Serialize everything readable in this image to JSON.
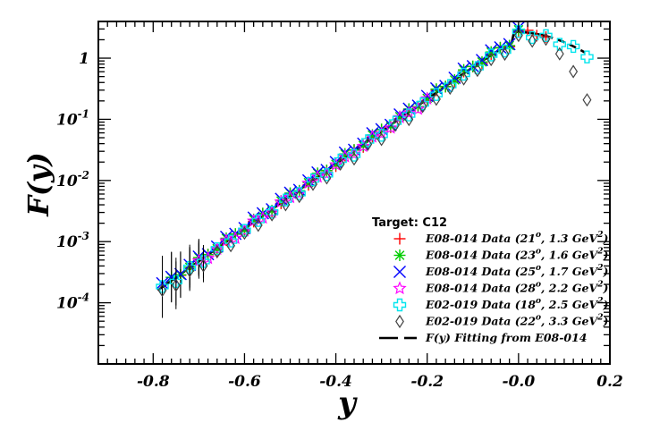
{
  "chart_data": {
    "type": "scatter",
    "title": "",
    "xlabel": "y",
    "ylabel": "F(y)",
    "xlim": [
      -0.92,
      0.2
    ],
    "ylim_log10": [
      -5.0,
      0.6
    ],
    "yscale": "log",
    "grid": false,
    "legend_position": "bottom-right",
    "legend_title": "Target: C12",
    "x_ticks": [
      -0.8,
      -0.6,
      -0.4,
      -0.2,
      0.0,
      0.2
    ],
    "x_tick_labels": [
      "-0.8",
      "-0.6",
      "-0.4",
      "-0.2",
      "-0.0",
      "0.2"
    ],
    "y_ticks": [
      {
        "value": 1,
        "base": "1",
        "exp": ""
      },
      {
        "value": 0.1,
        "base": "10",
        "exp": "-1"
      },
      {
        "value": 0.01,
        "base": "10",
        "exp": "-2"
      },
      {
        "value": 0.001,
        "base": "10",
        "exp": "-3"
      },
      {
        "value": 0.0001,
        "base": "10",
        "exp": "-4"
      }
    ],
    "series": [
      {
        "name": "E08-014 Data (21°, 1.3 GeV²)",
        "label_main": "E08-014 Data (21",
        "label_angle": "o",
        "label_mid": ", 1.3 GeV",
        "label_pow": "2",
        "label_end": ")",
        "marker": "plus",
        "color": "#ff0000",
        "x_start": -0.74,
        "x_end": 0.06,
        "x_step": 0.02,
        "offset": 0.0
      },
      {
        "name": "E08-014 Data (23°, 1.6 GeV²)",
        "label_main": "E08-014 Data (23",
        "label_angle": "o",
        "label_mid": ", 1.6 GeV",
        "label_pow": "2",
        "label_end": ")",
        "marker": "star",
        "color": "#00cc00",
        "x_start": -0.76,
        "x_end": 0.0,
        "x_step": 0.02,
        "offset": 0.02
      },
      {
        "name": "E08-014 Data (25°, 1.7 GeV²)",
        "label_main": "E08-014 Data (25",
        "label_angle": "o",
        "label_mid": ", 1.7 GeV",
        "label_pow": "2",
        "label_end": ")",
        "marker": "x",
        "color": "#0000ff",
        "x_start": -0.78,
        "x_end": 0.0,
        "x_step": 0.02,
        "offset": 0.04
      },
      {
        "name": "E08-014 Data (28°, 2.2 GeV²)",
        "label_main": "E08-014 Data (28",
        "label_angle": "o",
        "label_mid": ", 2.2 GeV",
        "label_pow": "2",
        "label_end": ")",
        "marker": "open-star",
        "color": "#ff00ff",
        "x_start": -0.7,
        "x_end": -0.2,
        "x_step": 0.02,
        "offset": -0.02
      },
      {
        "name": "E02-019 Data (18°, 2.5 GeV²)",
        "label_main": "E02-019 Data (18",
        "label_angle": "o",
        "label_mid": ", 2.5 GeV",
        "label_pow": "2",
        "label_end": ")",
        "marker": "open-cross",
        "color": "#00e5ee",
        "x_start": -0.78,
        "x_end": 0.15,
        "x_step": 0.03,
        "offset": -0.03
      },
      {
        "name": "E02-019 Data (22°, 3.3 GeV²)",
        "label_main": "E02-019 Data (22",
        "label_angle": "o",
        "label_mid": ", 3.3 GeV",
        "label_pow": "2",
        "label_end": ")",
        "marker": "diamond",
        "color": "#444444",
        "x_start": -0.78,
        "x_end": 0.15,
        "x_step": 0.03,
        "offset": -0.09
      }
    ],
    "fit": {
      "name": "F(y) Fitting from E08-014",
      "color": "#000000",
      "style": "solid-dash",
      "log10_at_minus_0_8": -3.85,
      "slope": 5.3,
      "peak_x": -0.01,
      "peak_log10": 0.43
    }
  }
}
